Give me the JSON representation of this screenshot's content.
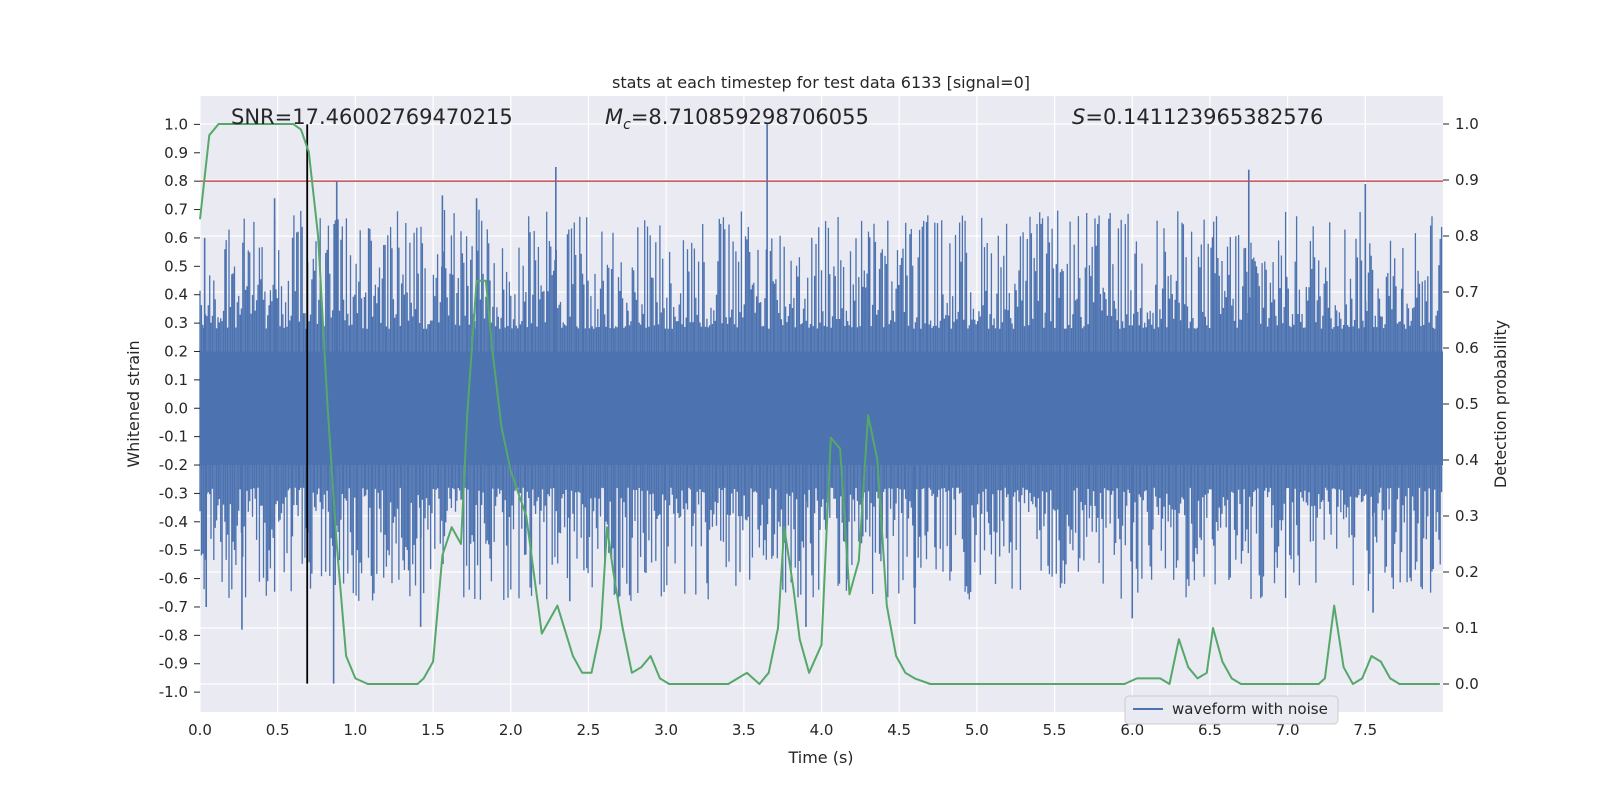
{
  "chart_data": {
    "type": "line",
    "title": "stats at each timestep for test data 6133 [signal=0]",
    "xlabel": "Time (s)",
    "ylabel_left": "Whitened strain",
    "ylabel_right": "Detection probability",
    "xlim": [
      0.0,
      8.0
    ],
    "ylim_left": [
      -1.07,
      1.1
    ],
    "ylim_right": [
      -0.05,
      1.05
    ],
    "x_ticks": [
      "0.0",
      "0.5",
      "1.0",
      "1.5",
      "2.0",
      "2.5",
      "3.0",
      "3.5",
      "4.0",
      "4.5",
      "5.0",
      "5.5",
      "6.0",
      "6.5",
      "7.0",
      "7.5"
    ],
    "x_tick_values": [
      0.0,
      0.5,
      1.0,
      1.5,
      2.0,
      2.5,
      3.0,
      3.5,
      4.0,
      4.5,
      5.0,
      5.5,
      6.0,
      6.5,
      7.0,
      7.5
    ],
    "y_left_ticks": [
      "1.0",
      "0.9",
      "0.8",
      "0.7",
      "0.6",
      "0.5",
      "0.4",
      "0.3",
      "0.2",
      "0.1",
      "0.0",
      "-0.1",
      "-0.2",
      "-0.3",
      "-0.4",
      "-0.5",
      "-0.6",
      "-0.7",
      "-0.8",
      "-0.9",
      "-1.0"
    ],
    "y_left_tick_values": [
      1.0,
      0.9,
      0.8,
      0.7,
      0.6,
      0.5,
      0.4,
      0.3,
      0.2,
      0.1,
      0.0,
      -0.1,
      -0.2,
      -0.3,
      -0.4,
      -0.5,
      -0.6,
      -0.7,
      -0.8,
      -0.9,
      -1.0
    ],
    "y_right_ticks": [
      "1.0",
      "0.9",
      "0.8",
      "0.7",
      "0.6",
      "0.5",
      "0.4",
      "0.3",
      "0.2",
      "0.1",
      "0.0"
    ],
    "y_right_tick_values": [
      1.0,
      0.9,
      0.8,
      0.7,
      0.6,
      0.5,
      0.4,
      0.3,
      0.2,
      0.1,
      0.0
    ],
    "annotations": {
      "snr": "SNR=17.46002769470215",
      "mc_symbol": "M",
      "mc_sub": "c",
      "mc_value": "=8.710859298706055",
      "s_symbol": "S",
      "s_value": "=0.141123965382576"
    },
    "threshold_line": {
      "axis": "left",
      "y": 0.8,
      "color": "#c44e52"
    },
    "marker_line": {
      "x": 0.69,
      "y_range": [
        -0.97,
        1.0
      ],
      "color": "#000000"
    },
    "legend": {
      "label": "waveform with noise",
      "location": "lower-right"
    },
    "series": [
      {
        "name": "waveform with noise",
        "axis": "left",
        "color": "#4c72b0",
        "kind": "noise",
        "bulk_envelope": [
          -0.2,
          0.2
        ],
        "samples": 900,
        "seed": 6133,
        "peaks": [
          {
            "x": 0.03,
            "y": 0.6
          },
          {
            "x": 0.04,
            "y": -0.7
          },
          {
            "x": 0.27,
            "y": -0.78
          },
          {
            "x": 0.48,
            "y": 0.74
          },
          {
            "x": 0.86,
            "y": -0.97
          },
          {
            "x": 0.88,
            "y": 0.8
          },
          {
            "x": 1.42,
            "y": -0.77
          },
          {
            "x": 1.56,
            "y": 0.75
          },
          {
            "x": 1.78,
            "y": 0.74
          },
          {
            "x": 2.29,
            "y": 0.85
          },
          {
            "x": 2.38,
            "y": -0.68
          },
          {
            "x": 3.65,
            "y": 1.0
          },
          {
            "x": 3.9,
            "y": -0.77
          },
          {
            "x": 4.6,
            "y": -0.76
          },
          {
            "x": 6.0,
            "y": -0.74
          },
          {
            "x": 6.75,
            "y": 0.84
          },
          {
            "x": 7.5,
            "y": 0.79
          },
          {
            "x": 7.55,
            "y": -0.72
          }
        ]
      },
      {
        "name": "detection probability",
        "axis": "right",
        "color": "#55a868",
        "x": [
          0.0,
          0.06,
          0.12,
          0.2,
          0.3,
          0.4,
          0.5,
          0.6,
          0.65,
          0.7,
          0.76,
          0.82,
          0.88,
          0.94,
          1.0,
          1.08,
          1.2,
          1.3,
          1.4,
          1.44,
          1.5,
          1.56,
          1.62,
          1.68,
          1.72,
          1.78,
          1.84,
          1.88,
          1.94,
          2.0,
          2.1,
          2.2,
          2.3,
          2.4,
          2.46,
          2.52,
          2.58,
          2.62,
          2.66,
          2.72,
          2.78,
          2.84,
          2.9,
          2.96,
          3.02,
          3.1,
          3.2,
          3.3,
          3.4,
          3.46,
          3.52,
          3.56,
          3.6,
          3.66,
          3.72,
          3.76,
          3.82,
          3.86,
          3.92,
          4.0,
          4.06,
          4.12,
          4.18,
          4.24,
          4.3,
          4.36,
          4.42,
          4.48,
          4.54,
          4.6,
          4.7,
          4.8,
          5.0,
          5.2,
          5.4,
          5.6,
          5.8,
          5.95,
          6.03,
          6.1,
          6.18,
          6.24,
          6.3,
          6.36,
          6.42,
          6.48,
          6.52,
          6.58,
          6.64,
          6.7,
          6.8,
          7.0,
          7.2,
          7.24,
          7.3,
          7.36,
          7.42,
          7.48,
          7.54,
          7.6,
          7.66,
          7.72,
          7.8,
          7.88,
          7.98
        ],
        "y": [
          0.83,
          0.98,
          1.0,
          1.0,
          1.0,
          1.0,
          1.0,
          1.0,
          0.99,
          0.95,
          0.8,
          0.5,
          0.25,
          0.05,
          0.01,
          0.0,
          0.0,
          0.0,
          0.0,
          0.01,
          0.04,
          0.23,
          0.28,
          0.25,
          0.48,
          0.72,
          0.72,
          0.6,
          0.46,
          0.38,
          0.3,
          0.09,
          0.14,
          0.05,
          0.02,
          0.02,
          0.1,
          0.28,
          0.2,
          0.1,
          0.02,
          0.03,
          0.05,
          0.01,
          0.0,
          0.0,
          0.0,
          0.0,
          0.0,
          0.01,
          0.02,
          0.01,
          0.0,
          0.02,
          0.1,
          0.28,
          0.17,
          0.08,
          0.02,
          0.07,
          0.44,
          0.42,
          0.16,
          0.22,
          0.48,
          0.4,
          0.14,
          0.05,
          0.02,
          0.01,
          0.0,
          0.0,
          0.0,
          0.0,
          0.0,
          0.0,
          0.0,
          0.0,
          0.01,
          0.01,
          0.01,
          0.0,
          0.08,
          0.03,
          0.01,
          0.02,
          0.1,
          0.04,
          0.01,
          0.0,
          0.0,
          0.0,
          0.0,
          0.01,
          0.14,
          0.03,
          0.0,
          0.01,
          0.05,
          0.04,
          0.01,
          0.0,
          0.0,
          0.0,
          0.0
        ]
      }
    ]
  }
}
